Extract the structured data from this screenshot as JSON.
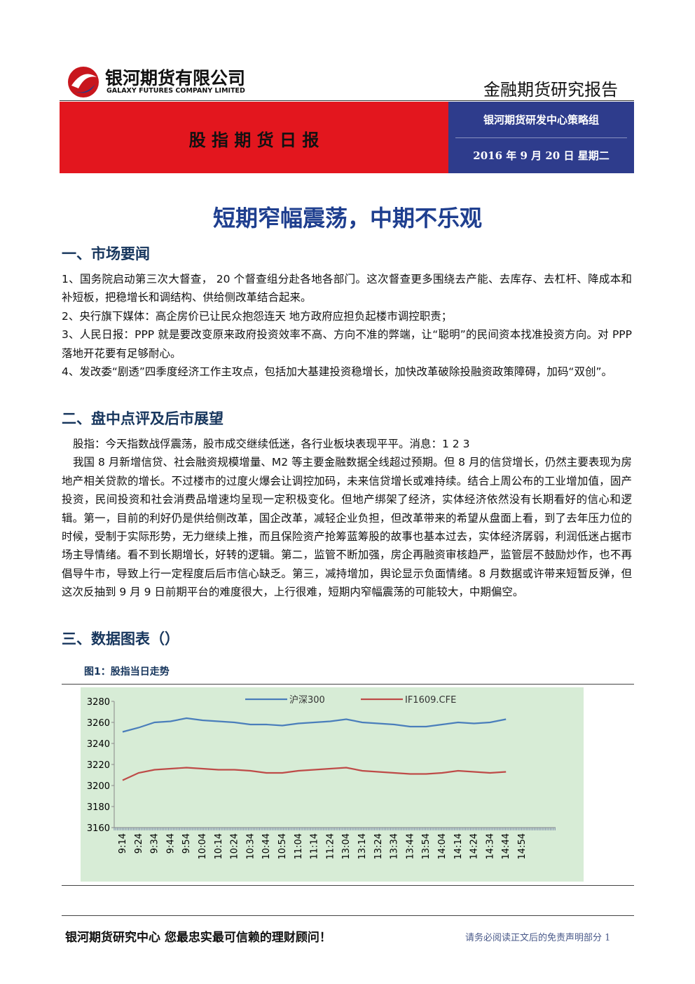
{
  "header": {
    "company_cn": "银河期货有限公司",
    "company_en": "GALAXY FUTURES COMPANY LIMITED",
    "report_type": "金融期货研究报告",
    "banner": "股 指 期 货 日 报",
    "team": "银河期货研发中心策略组",
    "date": "2016 年 9 月 20 日  星期二"
  },
  "title": "短期窄幅震荡，中期不乐观",
  "sections": [
    {
      "heading": "一、市场要闻",
      "paragraphs": [
        "1、国务院启动第三次大督查， 20 个督查组分赴各地各部门。这次督查更多围绕去产能、去库存、去杠杆、降成本和补短板，把稳增长和调结构、供给侧改革结合起来。",
        "2、央行旗下媒体：高企房价已让民众抱怨连天 地方政府应担负起楼市调控职责；",
        "3、人民日报：PPP 就是要改变原来政府投资效率不高、方向不准的弊端，让“聪明”的民间资本找准投资方向。对 PPP 落地开花要有足够耐心。",
        "4、发改委“剧透”四季度经济工作主攻点，包括加大基建投资稳增长，加快改革破除投融资政策障碍，加码“双创”。"
      ]
    },
    {
      "heading": "二、盘中点评及后市展望",
      "paragraphs": [
        "股指：今天指数战俘震荡，股市成交继续低迷，各行业板块表现平平。消息：1 2 3",
        "我国 8 月新增信贷、社会融资规模增量、M2 等主要金融数据全线超过预期。但 8 月的信贷增长，仍然主要表现为房地产相关贷款的增长。不过楼市的过度火爆会让调控加码，未来信贷增长或难持续。结合上周公布的工业增加值，固产投资，民间投资和社会消费品增速均呈现一定积极变化。但地产绑架了经济，实体经济依然没有长期看好的信心和逻辑。第一，目前的利好仍是供给侧改革，国企改革，减轻企业负担，但改革带来的希望从盘面上看，到了去年压力位的时候，受制于实际形势，无力继续上推，而且保险资产抢筹蓝筹股的故事也基本过去，实体经济孱弱，利润低迷占据市场主导情绪。看不到长期增长，好转的逻辑。第二，监管不断加强，房企再融资审核趋严，监管层不鼓励炒作，也不再倡导牛市，导致上行一定程度后后市信心缺乏。第三，减持增加，舆论显示负面情绪。8 月数据或许带来短暂反弹，但这次反抽到 9 月 9 日前期平台的难度很大，上行很难，短期内窄幅震荡的可能较大，中期偏空。"
      ]
    },
    {
      "heading": "三、数据图表（）",
      "paragraphs": []
    }
  ],
  "chart_data": {
    "type": "line",
    "title": "图1：股指当日走势",
    "categories": [
      "9:14",
      "9:24",
      "9:34",
      "9:44",
      "9:54",
      "10:04",
      "10:14",
      "10:24",
      "10:34",
      "10:44",
      "10:54",
      "11:04",
      "11:14",
      "11:24",
      "13:04",
      "13:14",
      "13:24",
      "13:34",
      "13:44",
      "13:54",
      "14:04",
      "14:14",
      "14:24",
      "14:34",
      "14:44",
      "14:54"
    ],
    "series": [
      {
        "name": "沪深300",
        "color": "#4a7ebb",
        "values": [
          3251,
          3255,
          3260,
          3261,
          3264,
          3262,
          3261,
          3260,
          3258,
          3258,
          3257,
          3259,
          3260,
          3261,
          3263,
          3260,
          3259,
          3258,
          3256,
          3256,
          3258,
          3260,
          3259,
          3260,
          3263,
          null
        ]
      },
      {
        "name": "IF1609.CFE",
        "color": "#be4b48",
        "values": [
          3205,
          3212,
          3215,
          3216,
          3217,
          3216,
          3215,
          3215,
          3214,
          3212,
          3212,
          3214,
          3215,
          3216,
          3217,
          3214,
          3213,
          3212,
          3211,
          3211,
          3212,
          3214,
          3213,
          3212,
          3213,
          null
        ]
      }
    ],
    "ylim": [
      3160,
      3280
    ],
    "yticks": [
      3160,
      3180,
      3200,
      3220,
      3240,
      3260,
      3280
    ],
    "grid": false,
    "legend": "top"
  },
  "footer": {
    "slogan": "银河期货研究中心   您最忠实最可信赖的理财顾问！",
    "disclaimer": "请务必阅读正文后的免责声明部分 1"
  }
}
